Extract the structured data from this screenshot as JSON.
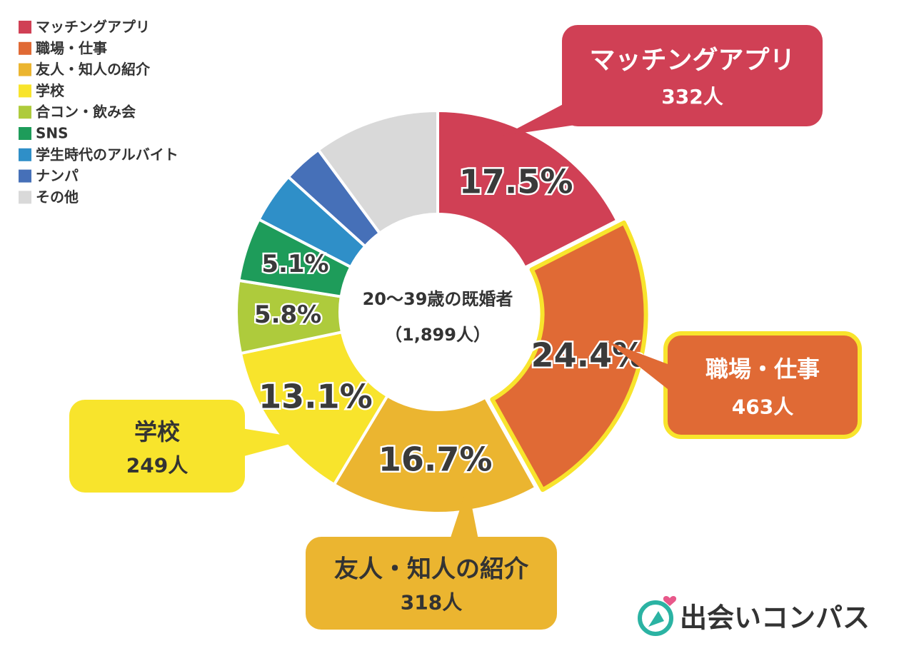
{
  "chart_data": {
    "type": "donut",
    "categories": [
      "マッチングアプリ",
      "職場・仕事",
      "友人・知人の紹介",
      "学校",
      "合コン・飲み会",
      "SNS",
      "学生時代のアルバイト",
      "ナンパ",
      "その他"
    ],
    "values": [
      17.5,
      24.4,
      16.7,
      13.1,
      5.8,
      5.1,
      4.1,
      3.2,
      10.1
    ],
    "value_labels": [
      "17.5%",
      "24.4%",
      "16.7%",
      "13.1%",
      "5.8%",
      "5.1%",
      null,
      null,
      null
    ],
    "colors": [
      "#d04055",
      "#e06a35",
      "#ebb530",
      "#f8e42c",
      "#aecb3c",
      "#1e9c5a",
      "#2f8fc8",
      "#4670b8",
      "#d9d9d9"
    ],
    "center_text": [
      "20〜39歳の既婚者",
      "（1,899人）"
    ],
    "callouts": [
      {
        "name": "マッチングアプリ",
        "count": {
          "value": 332,
          "label": "332人"
        }
      },
      {
        "name": "職場・仕事",
        "count": {
          "value": 463,
          "label": "463人"
        }
      },
      {
        "name": "友人・知人の紹介",
        "count": {
          "value": 318,
          "label": "318人"
        }
      },
      {
        "name": "学校",
        "count": {
          "value": 249,
          "label": "249人"
        }
      }
    ],
    "highlight": "職場・仕事",
    "legend": "top-left",
    "brand": "出会いコンパス"
  }
}
